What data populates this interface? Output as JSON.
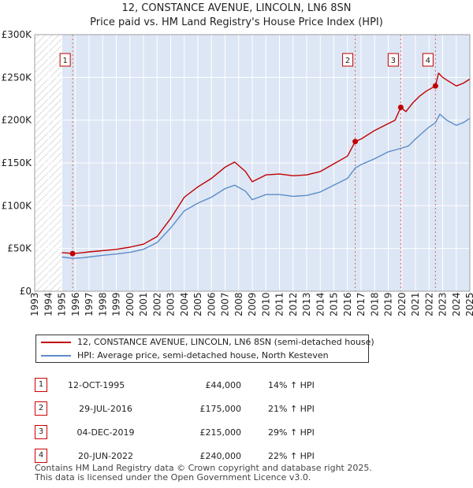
{
  "title_line1": "12, CONSTANCE AVENUE, LINCOLN, LN6 8SN",
  "title_line2": "Price paid vs. HM Land Registry's House Price Index (HPI)",
  "legend": {
    "property_label": "12, CONSTANCE AVENUE, LINCOLN, LN6 8SN (semi-detached house)",
    "hpi_label": "HPI: Average price, semi-detached house, North Kesteven"
  },
  "colors": {
    "property": "#c00000",
    "hpi": "#5b8dc9",
    "shade": "#dde6f4",
    "grid": "#dddddd"
  },
  "sales": [
    {
      "num": "1",
      "date": "12-OCT-1995",
      "price": "£44,000",
      "hpi": "14% ↑ HPI"
    },
    {
      "num": "2",
      "date": "29-JUL-2016",
      "price": "£175,000",
      "hpi": "21% ↑ HPI"
    },
    {
      "num": "3",
      "date": "04-DEC-2019",
      "price": "£215,000",
      "hpi": "29% ↑ HPI"
    },
    {
      "num": "4",
      "date": "20-JUN-2022",
      "price": "£240,000",
      "hpi": "22% ↑ HPI"
    }
  ],
  "footer_line1": "Contains HM Land Registry data © Crown copyright and database right 2025.",
  "footer_line2": "This data is licensed under the Open Government Licence v3.0.",
  "chart_data": {
    "type": "line",
    "title": "12, CONSTANCE AVENUE, LINCOLN, LN6 8SN — Price paid vs. HM Land Registry's House Price Index (HPI)",
    "xlim": [
      1993,
      2025
    ],
    "ylim": [
      0,
      300000
    ],
    "yticks": [
      0,
      50000,
      100000,
      150000,
      200000,
      250000,
      300000
    ],
    "ytick_labels": [
      "£0",
      "£50K",
      "£100K",
      "£150K",
      "£200K",
      "£250K",
      "£300K"
    ],
    "xticks": [
      "1993",
      "1994",
      "1995",
      "1996",
      "1997",
      "1998",
      "1999",
      "2000",
      "2001",
      "2002",
      "2003",
      "2004",
      "2005",
      "2006",
      "2007",
      "2008",
      "2009",
      "2010",
      "2011",
      "2012",
      "2013",
      "2014",
      "2015",
      "2016",
      "2017",
      "2018",
      "2019",
      "2020",
      "2021",
      "2022",
      "2023",
      "2024",
      "2025"
    ],
    "hatched_until": 1995,
    "shaded_bands": [
      [
        1995.0,
        2025.0
      ]
    ],
    "series": [
      {
        "name": "12, CONSTANCE AVENUE, LINCOLN, LN6 8SN (semi-detached house)",
        "color": "#c00000",
        "points": [
          [
            1995.0,
            45000
          ],
          [
            1995.5,
            44500
          ],
          [
            1995.79,
            44000
          ],
          [
            1996.5,
            45000
          ],
          [
            1997,
            46000
          ],
          [
            1998,
            47500
          ],
          [
            1999,
            49000
          ],
          [
            2000,
            51500
          ],
          [
            2001,
            55000
          ],
          [
            2002,
            64000
          ],
          [
            2003,
            85000
          ],
          [
            2004,
            110000
          ],
          [
            2005,
            122000
          ],
          [
            2006,
            132000
          ],
          [
            2007,
            145000
          ],
          [
            2007.7,
            151000
          ],
          [
            2008.5,
            140000
          ],
          [
            2009,
            128000
          ],
          [
            2009.5,
            132000
          ],
          [
            2010,
            136000
          ],
          [
            2011,
            137000
          ],
          [
            2012,
            135000
          ],
          [
            2013,
            136000
          ],
          [
            2014,
            140000
          ],
          [
            2015,
            149000
          ],
          [
            2016,
            158000
          ],
          [
            2016.57,
            175000
          ],
          [
            2017,
            178000
          ],
          [
            2018,
            188000
          ],
          [
            2019,
            196000
          ],
          [
            2019.5,
            200000
          ],
          [
            2019.92,
            215000
          ],
          [
            2020.3,
            210000
          ],
          [
            2020.8,
            220000
          ],
          [
            2021.3,
            228000
          ],
          [
            2021.8,
            234000
          ],
          [
            2022.47,
            240000
          ],
          [
            2022.7,
            255000
          ],
          [
            2023,
            250000
          ],
          [
            2023.5,
            245000
          ],
          [
            2024,
            240000
          ],
          [
            2024.5,
            243000
          ],
          [
            2025,
            248000
          ]
        ]
      },
      {
        "name": "HPI: Average price, semi-detached house, North Kesteven",
        "color": "#5b8dc9",
        "points": [
          [
            1995.0,
            40000
          ],
          [
            1995.79,
            38500
          ],
          [
            1996.5,
            39000
          ],
          [
            1997,
            40000
          ],
          [
            1998,
            42000
          ],
          [
            1999,
            43500
          ],
          [
            2000,
            45500
          ],
          [
            2001,
            49000
          ],
          [
            2002,
            57000
          ],
          [
            2003,
            74000
          ],
          [
            2004,
            94000
          ],
          [
            2005,
            103000
          ],
          [
            2006,
            110000
          ],
          [
            2007,
            120000
          ],
          [
            2007.7,
            124000
          ],
          [
            2008.5,
            117000
          ],
          [
            2009,
            107000
          ],
          [
            2009.5,
            110000
          ],
          [
            2010,
            113000
          ],
          [
            2011,
            113000
          ],
          [
            2012,
            111000
          ],
          [
            2013,
            112000
          ],
          [
            2014,
            116000
          ],
          [
            2015,
            124000
          ],
          [
            2016,
            132000
          ],
          [
            2016.57,
            144000
          ],
          [
            2017,
            148000
          ],
          [
            2018,
            155000
          ],
          [
            2019,
            163000
          ],
          [
            2019.92,
            167000
          ],
          [
            2020.5,
            170000
          ],
          [
            2021,
            178000
          ],
          [
            2021.5,
            185000
          ],
          [
            2022,
            192000
          ],
          [
            2022.47,
            197000
          ],
          [
            2022.8,
            207000
          ],
          [
            2023.3,
            200000
          ],
          [
            2024,
            194000
          ],
          [
            2024.5,
            197000
          ],
          [
            2025,
            202000
          ]
        ]
      }
    ],
    "sale_markers": [
      {
        "label": "1",
        "x": 1995.79,
        "y": 44000
      },
      {
        "label": "2",
        "x": 2016.57,
        "y": 175000
      },
      {
        "label": "3",
        "x": 2019.92,
        "y": 215000
      },
      {
        "label": "4",
        "x": 2022.47,
        "y": 240000
      }
    ]
  }
}
